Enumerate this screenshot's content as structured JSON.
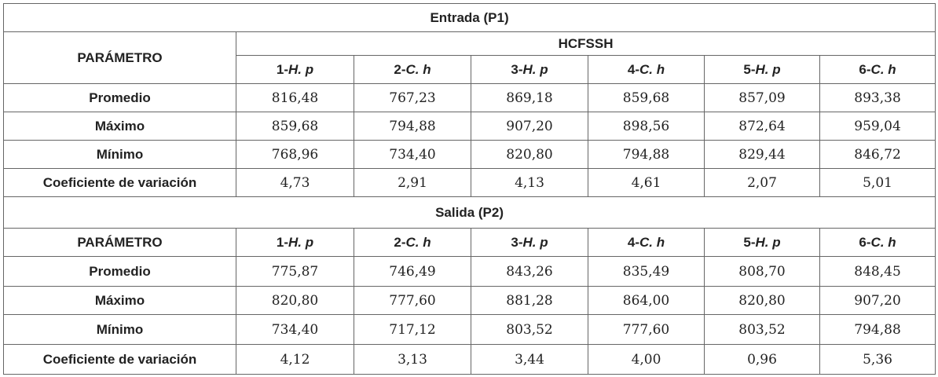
{
  "section1": {
    "title": "Entrada (P1)",
    "parameter": "PARÁMETRO",
    "group": "HCFSSH",
    "columns": [
      {
        "prefix": "1-",
        "name": "H. p"
      },
      {
        "prefix": "2-",
        "name": "C. h"
      },
      {
        "prefix": "3-",
        "name": "H. p"
      },
      {
        "prefix": "4-",
        "name": "C. h"
      },
      {
        "prefix": "5-",
        "name": "H. p"
      },
      {
        "prefix": "6-",
        "name": "C. h"
      }
    ],
    "rows": [
      {
        "label": "Promedio",
        "values": [
          "816,48",
          "767,23",
          "869,18",
          "859,68",
          "857,09",
          "893,38"
        ]
      },
      {
        "label": "Máximo",
        "values": [
          "859,68",
          "794,88",
          "907,20",
          "898,56",
          "872,64",
          "959,04"
        ]
      },
      {
        "label": "Mínimo",
        "values": [
          "768,96",
          "734,40",
          "820,80",
          "794,88",
          "829,44",
          "846,72"
        ]
      },
      {
        "label": "Coeficiente de variación",
        "values": [
          "4,73",
          "2,91",
          "4,13",
          "4,61",
          "2,07",
          "5,01"
        ]
      }
    ]
  },
  "section2": {
    "title": "Salida (P2)",
    "parameter": "PARÁMETRO",
    "columns": [
      {
        "prefix": "1-",
        "name": "H. p"
      },
      {
        "prefix": "2-",
        "name": "C. h"
      },
      {
        "prefix": "3-",
        "name": "H. p"
      },
      {
        "prefix": "4-",
        "name": "C. h"
      },
      {
        "prefix": "5-",
        "name": "H. p"
      },
      {
        "prefix": "6-",
        "name": "C. h"
      }
    ],
    "rows": [
      {
        "label": "Promedio",
        "values": [
          "775,87",
          "746,49",
          "843,26",
          "835,49",
          "808,70",
          "848,45"
        ]
      },
      {
        "label": "Máximo",
        "values": [
          "820,80",
          "777,60",
          "881,28",
          "864,00",
          "820,80",
          "907,20"
        ]
      },
      {
        "label": "Mínimo",
        "values": [
          "734,40",
          "717,12",
          "803,52",
          "777,60",
          "803,52",
          "794,88"
        ]
      },
      {
        "label": "Coeficiente de variación",
        "values": [
          "4,12",
          "3,13",
          "3,44",
          "4,00",
          "0,96",
          "5,36"
        ]
      }
    ]
  }
}
